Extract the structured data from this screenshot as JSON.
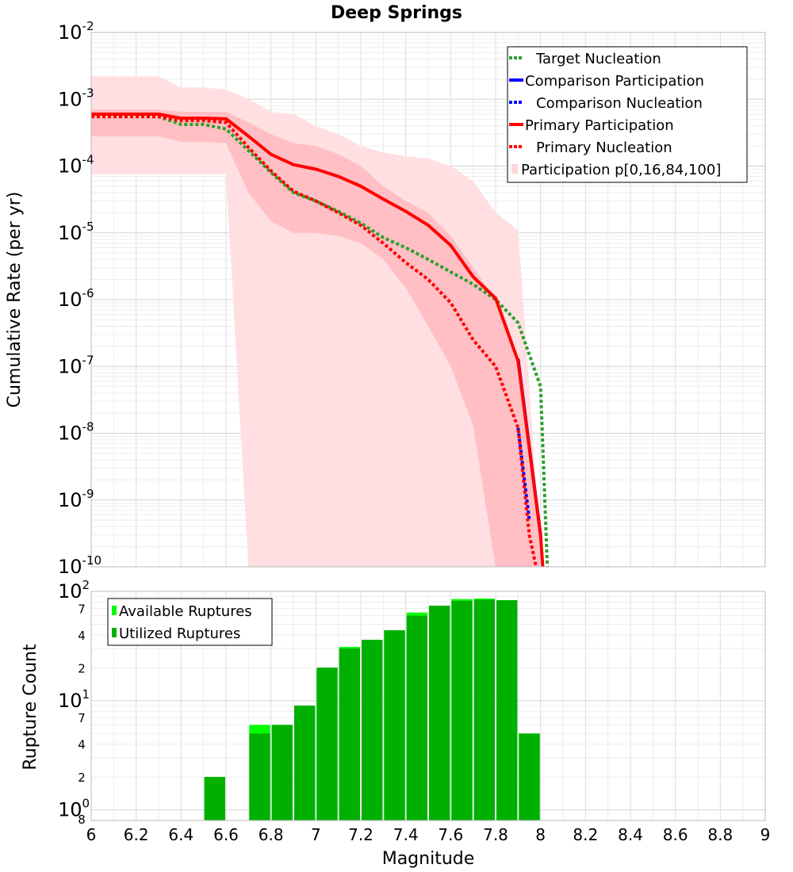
{
  "chart_data": [
    {
      "type": "line",
      "title": "Deep Springs",
      "xlabel": "",
      "ylabel": "Cumulative Rate (per yr)",
      "yscale": "log",
      "xlim": [
        6,
        9
      ],
      "ylim": [
        1e-10,
        0.01
      ],
      "x_ticks": [
        "6",
        "6.2",
        "6.4",
        "6.6",
        "6.8",
        "7",
        "7.2",
        "7.4",
        "7.6",
        "7.8",
        "8",
        "8.2",
        "8.4",
        "8.6",
        "8.8",
        "9"
      ],
      "y_ticks": [
        {
          "base": "10",
          "exp": "-2",
          "value": 0.01
        },
        {
          "base": "10",
          "exp": "-3",
          "value": 0.001
        },
        {
          "base": "10",
          "exp": "-4",
          "value": 0.0001
        },
        {
          "base": "10",
          "exp": "-5",
          "value": 1e-05
        },
        {
          "base": "10",
          "exp": "-6",
          "value": 1e-06
        },
        {
          "base": "10",
          "exp": "-7",
          "value": 1e-07
        },
        {
          "base": "10",
          "exp": "-8",
          "value": 1e-08
        },
        {
          "base": "10",
          "exp": "-9",
          "value": 1e-09
        },
        {
          "base": "10",
          "exp": "-10",
          "value": 1e-10
        }
      ],
      "legend": {
        "position": "top-right",
        "entries": [
          {
            "label": "Target Nucleation",
            "color": "#2ca02c",
            "style": "dotted"
          },
          {
            "label": "Comparison Participation",
            "color": "#0000ff",
            "style": "solid"
          },
          {
            "label": "Comparison Nucleation",
            "color": "#0000ff",
            "style": "dotted"
          },
          {
            "label": "Primary Participation",
            "color": "#ff0000",
            "style": "solid"
          },
          {
            "label": "Primary Nucleation",
            "color": "#ff0000",
            "style": "dotted"
          },
          {
            "label": "Participation p[0,16,84,100]",
            "color": "#ffd5d8",
            "style": "fill"
          }
        ]
      },
      "bands": [
        {
          "name": "p0-p100",
          "color": "#ffdfe2",
          "x": [
            6.0,
            6.1,
            6.2,
            6.3,
            6.4,
            6.5,
            6.6,
            6.7,
            6.8,
            6.9,
            7.0,
            7.1,
            7.2,
            7.3,
            7.4,
            7.5,
            7.6,
            7.7,
            7.8,
            7.9,
            8.0
          ],
          "upper": [
            0.0022,
            0.0022,
            0.0022,
            0.0022,
            0.0015,
            0.0015,
            0.0014,
            0.001,
            0.00065,
            0.0006,
            0.0004,
            0.0003,
            0.0002,
            0.00016,
            0.00014,
            0.00013,
            0.0001,
            6e-05,
            2e-05,
            1.1e-05,
            2e-10
          ],
          "lower": [
            7.5e-05,
            7.5e-05,
            7.5e-05,
            7.5e-05,
            7.5e-05,
            7.5e-05,
            7.5e-05,
            1e-10,
            1e-10,
            1e-10,
            1e-10,
            1e-10,
            1e-10,
            1e-10,
            1e-10,
            1e-10,
            1e-10,
            1e-10,
            1e-10,
            1e-10,
            1e-10
          ]
        },
        {
          "name": "p16-p84",
          "color": "#ffbfc4",
          "x": [
            6.0,
            6.1,
            6.2,
            6.3,
            6.4,
            6.5,
            6.6,
            6.7,
            6.8,
            6.9,
            7.0,
            7.1,
            7.2,
            7.3,
            7.4,
            7.5,
            7.6,
            7.7,
            7.8,
            7.9,
            8.0
          ],
          "upper": [
            0.0007,
            0.0007,
            0.0007,
            0.0007,
            0.00065,
            0.00065,
            0.00065,
            0.00045,
            0.0003,
            0.00022,
            0.0002,
            0.00015,
            0.0001,
            5e-05,
            3e-05,
            2e-05,
            9e-06,
            3e-06,
            1e-06,
            1.2e-07,
            2e-10
          ],
          "lower": [
            0.00028,
            0.00028,
            0.00028,
            0.00028,
            0.00023,
            0.00023,
            0.00022,
            4e-05,
            1.5e-05,
            1e-05,
            1e-05,
            9e-06,
            7e-06,
            4e-06,
            1.5e-06,
            4e-07,
            1e-07,
            1.3e-08,
            1e-10,
            1e-10,
            1e-10
          ]
        }
      ],
      "series": [
        {
          "name": "Target Nucleation",
          "color": "#2ca02c",
          "style": "dotted",
          "x": [
            6.0,
            6.1,
            6.2,
            6.3,
            6.4,
            6.5,
            6.6,
            6.7,
            6.8,
            6.9,
            7.0,
            7.1,
            7.2,
            7.3,
            7.4,
            7.5,
            7.6,
            7.7,
            7.8,
            7.9,
            8.0,
            8.03
          ],
          "values": [
            0.00055,
            0.00055,
            0.00055,
            0.00055,
            0.00042,
            0.00042,
            0.00036,
            0.00017,
            8e-05,
            4e-05,
            3e-05,
            2.1e-05,
            1.4e-05,
            8.5e-06,
            6e-06,
            4e-06,
            2.6e-06,
            1.7e-06,
            1e-06,
            4.5e-07,
            5e-08,
            1e-10
          ]
        },
        {
          "name": "Comparison Participation",
          "color": "#0000ff",
          "style": "solid",
          "x": [
            7.9,
            8.0
          ],
          "values": [
            1.3e-07,
            3e-10
          ]
        },
        {
          "name": "Comparison Nucleation",
          "color": "#0000ff",
          "style": "dotted",
          "x": [
            7.9,
            7.95
          ],
          "values": [
            1.2e-08,
            5e-10
          ]
        },
        {
          "name": "Primary Participation",
          "color": "#ff0000",
          "style": "solid",
          "x": [
            6.0,
            6.1,
            6.2,
            6.3,
            6.4,
            6.5,
            6.6,
            6.7,
            6.8,
            6.9,
            7.0,
            7.1,
            7.2,
            7.3,
            7.4,
            7.5,
            7.6,
            7.7,
            7.8,
            7.9,
            8.0,
            8.01
          ],
          "values": [
            0.0006,
            0.0006,
            0.0006,
            0.0006,
            0.00052,
            0.00052,
            0.00051,
            0.00028,
            0.00015,
            0.000105,
            9e-05,
            7e-05,
            5e-05,
            3.2e-05,
            2.1e-05,
            1.3e-05,
            6.5e-06,
            2.2e-06,
            1.05e-06,
            1.2e-07,
            3e-10,
            1e-10
          ]
        },
        {
          "name": "Primary Nucleation",
          "color": "#ff0000",
          "style": "dotted",
          "x": [
            6.0,
            6.1,
            6.2,
            6.3,
            6.4,
            6.5,
            6.6,
            6.7,
            6.8,
            6.9,
            7.0,
            7.1,
            7.2,
            7.3,
            7.4,
            7.5,
            7.6,
            7.7,
            7.8,
            7.9,
            7.95,
            7.98
          ],
          "values": [
            0.00055,
            0.00055,
            0.00055,
            0.00055,
            0.00048,
            0.00048,
            0.00045,
            0.00019,
            8.5e-05,
            4.2e-05,
            3e-05,
            2e-05,
            1.3e-05,
            7e-06,
            3.6e-06,
            2e-06,
            9e-07,
            2.5e-07,
            1e-07,
            1.2e-08,
            3e-10,
            1e-10
          ]
        }
      ]
    },
    {
      "type": "bar",
      "title": "",
      "xlabel": "Magnitude",
      "ylabel": "Rupture Count",
      "yscale": "log",
      "xlim": [
        6,
        9
      ],
      "ylim": [
        0.8,
        100
      ],
      "x_ticks": [
        "6",
        "6.2",
        "6.4",
        "6.6",
        "6.8",
        "7",
        "7.2",
        "7.4",
        "7.6",
        "7.8",
        "8",
        "8.2",
        "8.4",
        "8.6",
        "8.8",
        "9"
      ],
      "y_major_ticks": [
        {
          "base": "10",
          "exp": "2",
          "value": 100
        },
        {
          "base": "10",
          "exp": "1",
          "value": 10
        },
        {
          "base": "10",
          "exp": "0",
          "value": 1
        }
      ],
      "y_minor_ticks": [
        {
          "label": "7",
          "value": 70
        },
        {
          "label": "4",
          "value": 40
        },
        {
          "label": "2",
          "value": 20
        },
        {
          "label": "7",
          "value": 7
        },
        {
          "label": "4",
          "value": 4
        },
        {
          "label": "2",
          "value": 2
        },
        {
          "label": "8",
          "value": 0.8
        }
      ],
      "legend": {
        "position": "top-left",
        "entries": [
          {
            "label": "Available Ruptures",
            "color": "#00ff00"
          },
          {
            "label": "Utilized Ruptures",
            "color": "#00b000"
          }
        ]
      },
      "series": [
        {
          "name": "Available Ruptures",
          "color": "#00ff00",
          "x": [
            6.55,
            6.75,
            6.85,
            6.95,
            7.05,
            7.15,
            7.25,
            7.35,
            7.45,
            7.55,
            7.65,
            7.75,
            7.85,
            7.95
          ],
          "values": [
            2,
            6,
            6,
            9,
            20,
            31,
            36,
            44,
            64,
            74,
            85,
            86,
            83,
            5
          ]
        },
        {
          "name": "Utilized Ruptures",
          "color": "#00b000",
          "x": [
            6.55,
            6.75,
            6.85,
            6.95,
            7.05,
            7.15,
            7.25,
            7.35,
            7.45,
            7.55,
            7.65,
            7.75,
            7.85,
            7.95
          ],
          "values": [
            2,
            5,
            6,
            9,
            20,
            30,
            36,
            44,
            60,
            74,
            82,
            84,
            83,
            5
          ]
        }
      ]
    }
  ]
}
